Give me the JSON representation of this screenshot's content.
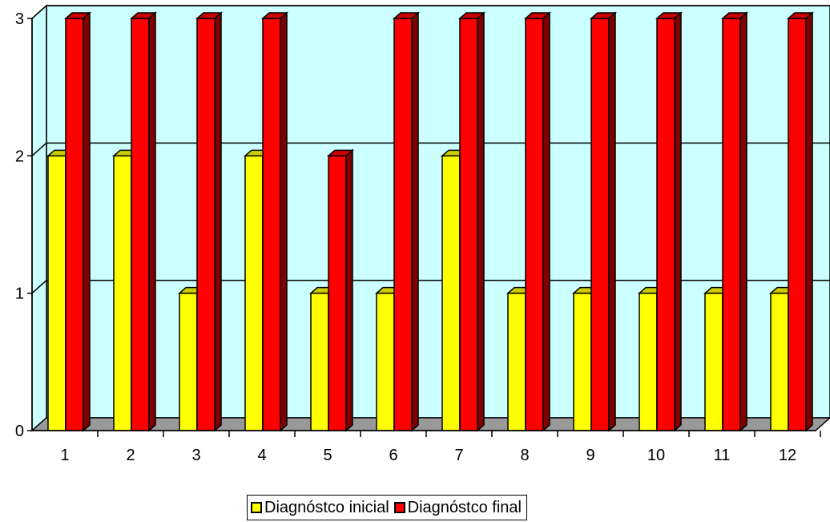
{
  "chart_data": {
    "type": "bar",
    "categories": [
      "1",
      "2",
      "3",
      "4",
      "5",
      "6",
      "7",
      "8",
      "9",
      "10",
      "11",
      "12"
    ],
    "series": [
      {
        "name": "Diagnóstco inicial",
        "values": [
          2,
          2,
          1,
          2,
          1,
          1,
          2,
          1,
          1,
          1,
          1,
          1
        ],
        "color": "#ffff00"
      },
      {
        "name": "Diagnóstco final",
        "values": [
          3,
          3,
          3,
          3,
          2,
          3,
          3,
          3,
          3,
          3,
          3,
          3
        ],
        "color": "#ff0000"
      }
    ],
    "y_ticks": [
      "0",
      "1",
      "2",
      "3"
    ],
    "ylim": [
      0,
      3
    ],
    "grid": true,
    "wall_color": "#ccffff",
    "floor_color": "#999999",
    "legend_position": "bottom",
    "title": "",
    "xlabel": "",
    "ylabel": ""
  }
}
